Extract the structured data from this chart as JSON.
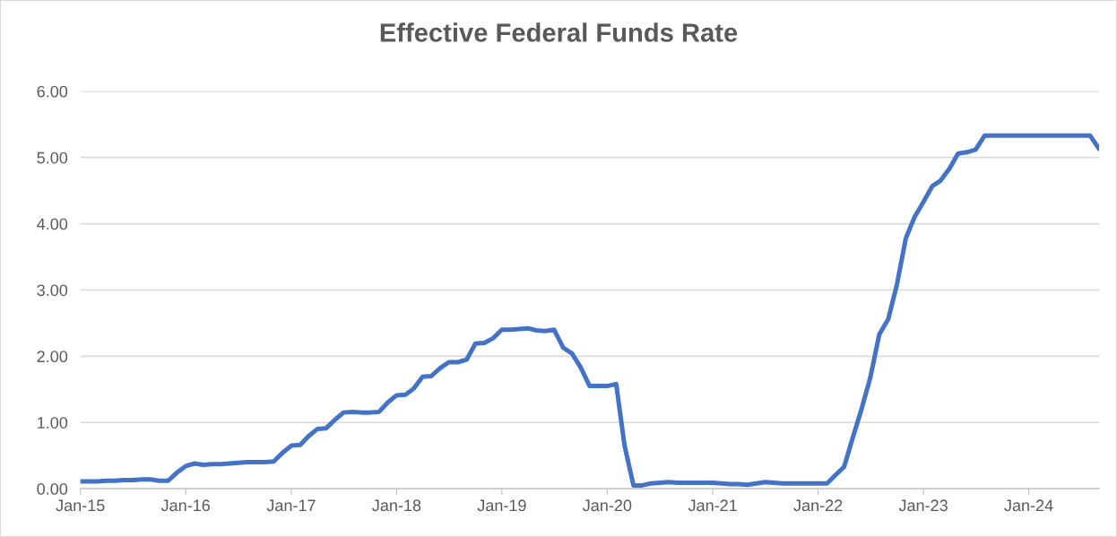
{
  "chart_data": {
    "type": "line",
    "title": "Effective Federal Funds Rate",
    "x": [
      "2015-01",
      "2015-02",
      "2015-03",
      "2015-04",
      "2015-05",
      "2015-06",
      "2015-07",
      "2015-08",
      "2015-09",
      "2015-10",
      "2015-11",
      "2015-12",
      "2016-01",
      "2016-02",
      "2016-03",
      "2016-04",
      "2016-05",
      "2016-06",
      "2016-07",
      "2016-08",
      "2016-09",
      "2016-10",
      "2016-11",
      "2016-12",
      "2017-01",
      "2017-02",
      "2017-03",
      "2017-04",
      "2017-05",
      "2017-06",
      "2017-07",
      "2017-08",
      "2017-09",
      "2017-10",
      "2017-11",
      "2017-12",
      "2018-01",
      "2018-02",
      "2018-03",
      "2018-04",
      "2018-05",
      "2018-06",
      "2018-07",
      "2018-08",
      "2018-09",
      "2018-10",
      "2018-11",
      "2018-12",
      "2019-01",
      "2019-02",
      "2019-03",
      "2019-04",
      "2019-05",
      "2019-06",
      "2019-07",
      "2019-08",
      "2019-09",
      "2019-10",
      "2019-11",
      "2019-12",
      "2020-01",
      "2020-02",
      "2020-03",
      "2020-04",
      "2020-05",
      "2020-06",
      "2020-07",
      "2020-08",
      "2020-09",
      "2020-10",
      "2020-11",
      "2020-12",
      "2021-01",
      "2021-02",
      "2021-03",
      "2021-04",
      "2021-05",
      "2021-06",
      "2021-07",
      "2021-08",
      "2021-09",
      "2021-10",
      "2021-11",
      "2021-12",
      "2022-01",
      "2022-02",
      "2022-03",
      "2022-04",
      "2022-05",
      "2022-06",
      "2022-07",
      "2022-08",
      "2022-09",
      "2022-10",
      "2022-11",
      "2022-12",
      "2023-01",
      "2023-02",
      "2023-03",
      "2023-04",
      "2023-05",
      "2023-06",
      "2023-07",
      "2023-08",
      "2023-09",
      "2023-10",
      "2023-11",
      "2023-12",
      "2024-01",
      "2024-02",
      "2024-03",
      "2024-04",
      "2024-05",
      "2024-06",
      "2024-07",
      "2024-08",
      "2024-09"
    ],
    "series": [
      {
        "color": "#4472c4",
        "values": [
          0.11,
          0.11,
          0.11,
          0.12,
          0.12,
          0.13,
          0.13,
          0.14,
          0.14,
          0.12,
          0.12,
          0.24,
          0.34,
          0.38,
          0.36,
          0.37,
          0.37,
          0.38,
          0.39,
          0.4,
          0.4,
          0.4,
          0.41,
          0.54,
          0.65,
          0.66,
          0.79,
          0.9,
          0.91,
          1.04,
          1.15,
          1.16,
          1.15,
          1.15,
          1.16,
          1.3,
          1.41,
          1.42,
          1.51,
          1.69,
          1.7,
          1.82,
          1.91,
          1.91,
          1.95,
          2.19,
          2.2,
          2.27,
          2.4,
          2.4,
          2.41,
          2.42,
          2.39,
          2.38,
          2.4,
          2.13,
          2.04,
          1.83,
          1.55,
          1.55,
          1.55,
          1.58,
          0.65,
          0.05,
          0.05,
          0.08,
          0.09,
          0.1,
          0.09,
          0.09,
          0.09,
          0.09,
          0.09,
          0.08,
          0.07,
          0.07,
          0.06,
          0.08,
          0.1,
          0.09,
          0.08,
          0.08,
          0.08,
          0.08,
          0.08,
          0.08,
          0.2,
          0.33,
          0.77,
          1.21,
          1.68,
          2.33,
          2.56,
          3.08,
          3.78,
          4.1,
          4.33,
          4.57,
          4.65,
          4.83,
          5.06,
          5.08,
          5.12,
          5.33,
          5.33,
          5.33,
          5.33,
          5.33,
          5.33,
          5.33,
          5.33,
          5.33,
          5.33,
          5.33,
          5.33,
          5.33,
          5.13
        ]
      }
    ],
    "xlim": [
      "2015-01",
      "2024-09"
    ],
    "xticks": [
      {
        "value": "2015-01",
        "label": "Jan-15"
      },
      {
        "value": "2016-01",
        "label": "Jan-16"
      },
      {
        "value": "2017-01",
        "label": "Jan-17"
      },
      {
        "value": "2018-01",
        "label": "Jan-18"
      },
      {
        "value": "2019-01",
        "label": "Jan-19"
      },
      {
        "value": "2020-01",
        "label": "Jan-20"
      },
      {
        "value": "2021-01",
        "label": "Jan-21"
      },
      {
        "value": "2022-01",
        "label": "Jan-22"
      },
      {
        "value": "2023-01",
        "label": "Jan-23"
      },
      {
        "value": "2024-01",
        "label": "Jan-24"
      }
    ],
    "ylim": [
      0,
      6
    ],
    "yticks": [
      {
        "value": 0,
        "label": "0.00"
      },
      {
        "value": 1,
        "label": "1.00"
      },
      {
        "value": 2,
        "label": "2.00"
      },
      {
        "value": 3,
        "label": "3.00"
      },
      {
        "value": 4,
        "label": "4.00"
      },
      {
        "value": 5,
        "label": "5.00"
      },
      {
        "value": 6,
        "label": "6.00"
      }
    ],
    "grid": "y",
    "marker": "none",
    "line_style": "solid"
  }
}
